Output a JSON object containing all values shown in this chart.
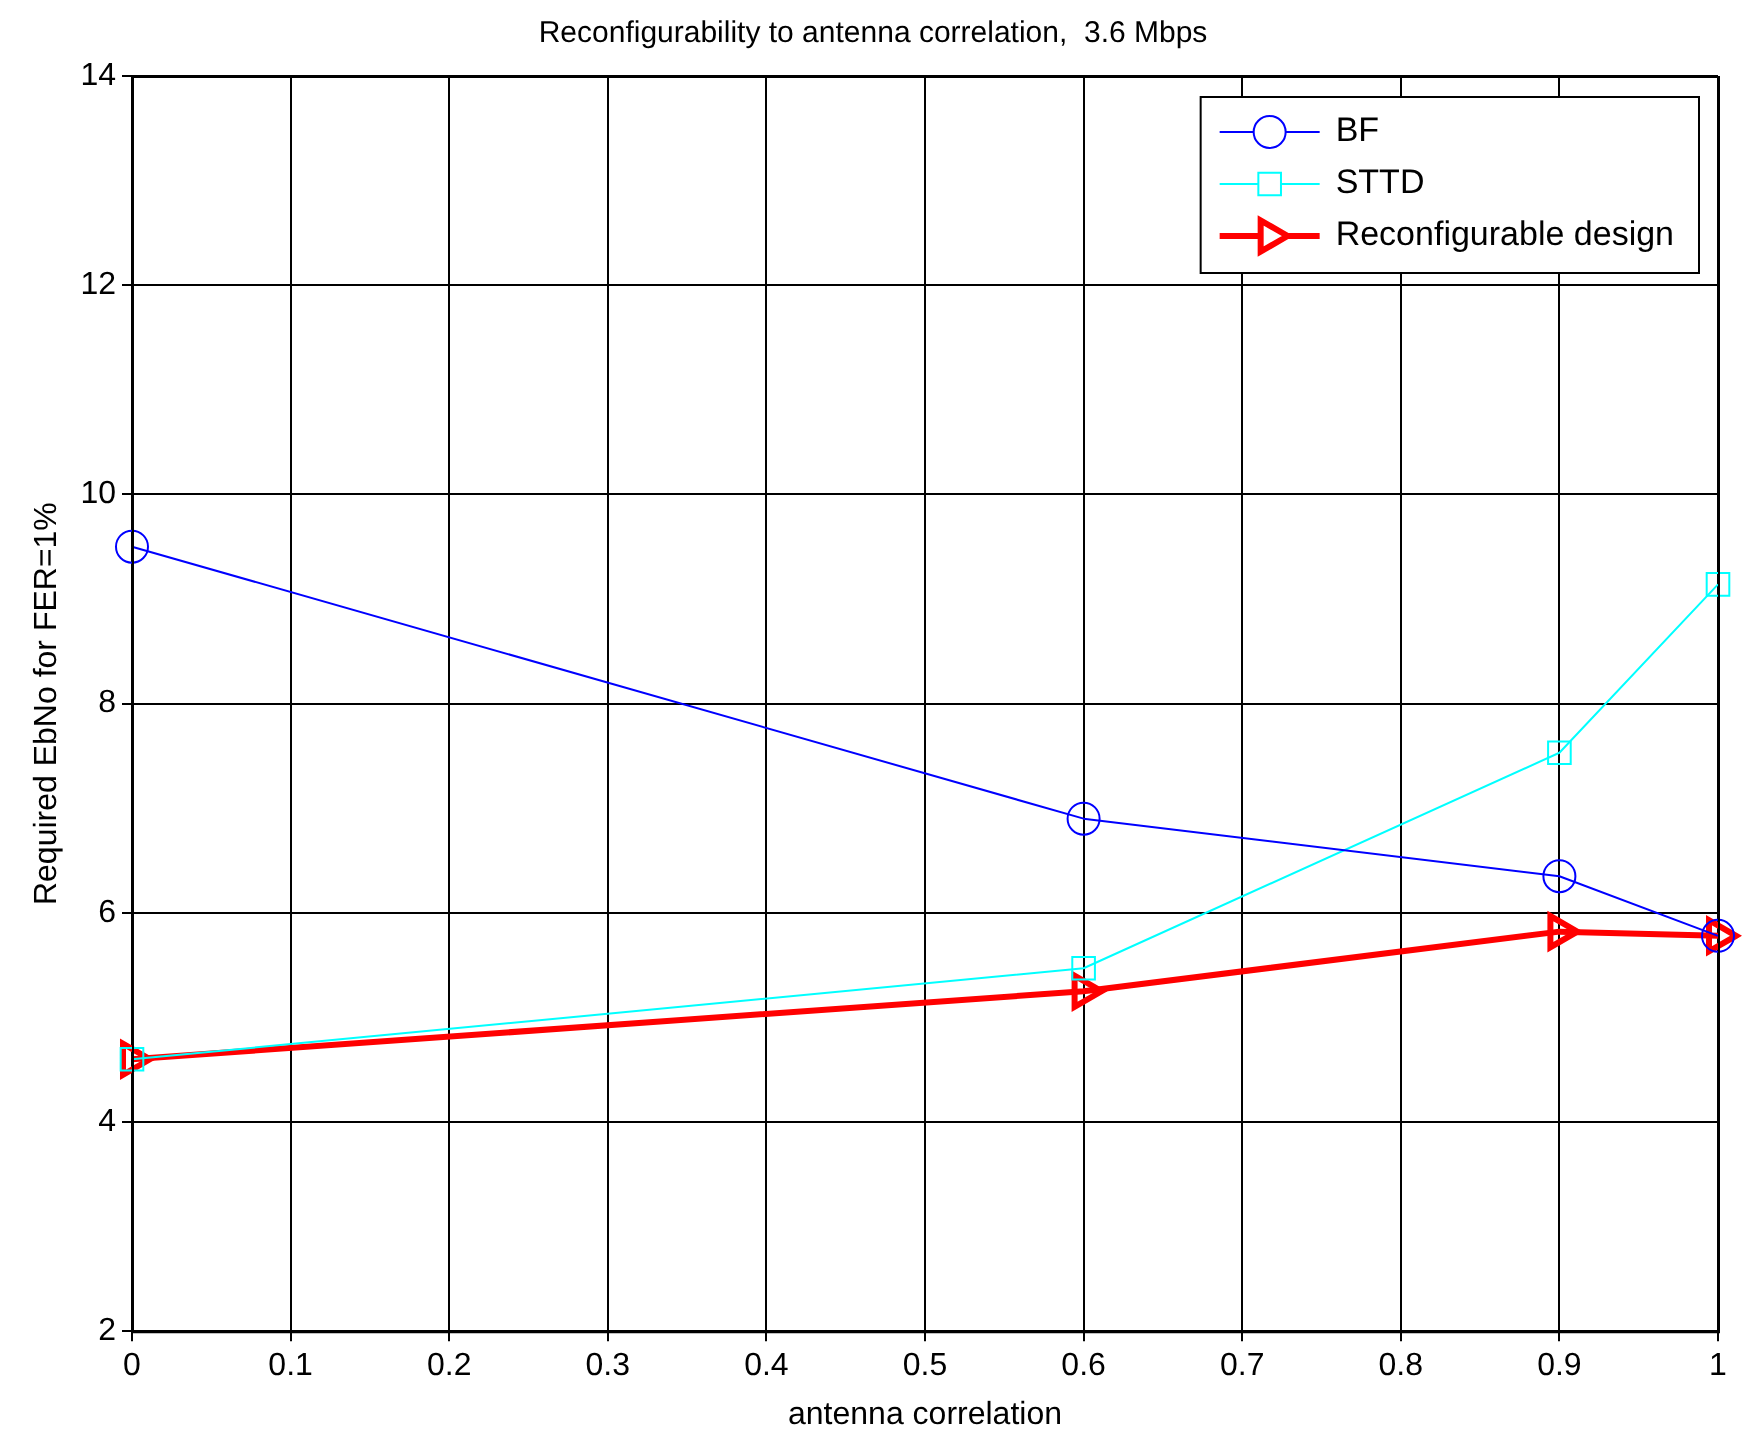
{
  "chart_data": {
    "type": "line",
    "title": "Reconfigurability to antenna correlation,  3.6 Mbps",
    "xlabel": "antenna correlation",
    "ylabel": "Required EbNo for FER=1%",
    "x": [
      0,
      0.6,
      0.9,
      1
    ],
    "series": [
      {
        "name": "BF",
        "color": "#0000ff",
        "marker": "circle",
        "values": [
          9.5,
          6.9,
          6.35,
          5.78
        ]
      },
      {
        "name": "STTD",
        "color": "#00ffff",
        "marker": "square",
        "values": [
          4.6,
          5.47,
          7.53,
          9.14
        ]
      },
      {
        "name": "Reconfigurable design",
        "color": "#ff0000",
        "marker": "triangle",
        "values": [
          4.6,
          5.25,
          5.82,
          5.78
        ]
      }
    ],
    "xlim": [
      0,
      1
    ],
    "xticks": [
      0,
      0.1,
      0.2,
      0.3,
      0.4,
      0.5,
      0.6,
      0.7,
      0.8,
      0.9,
      1
    ],
    "ylim": [
      2,
      14
    ],
    "yticks": [
      2,
      4,
      6,
      8,
      10,
      12,
      14
    ],
    "grid": true,
    "legend": "top right"
  }
}
